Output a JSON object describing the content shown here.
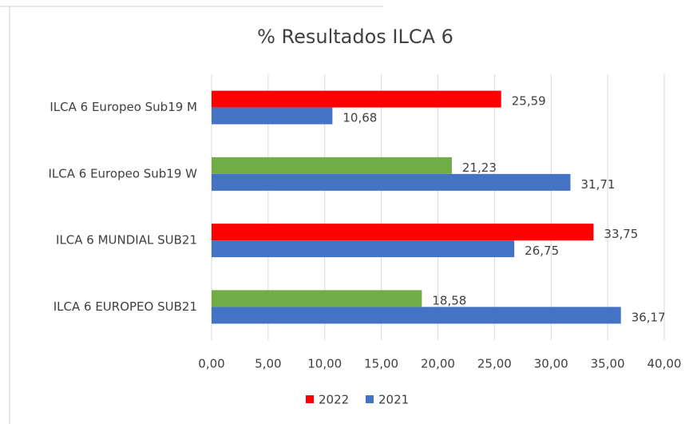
{
  "chart_data": {
    "type": "hbar",
    "title": "% Resultados ILCA 6",
    "categories": [
      "ILCA 6 Europeo Sub19 M",
      "ILCA 6 Europeo Sub19 W",
      "ILCA 6 MUNDIAL SUB21",
      "ILCA 6 EUROPEO SUB21"
    ],
    "series": [
      {
        "name": "2022",
        "color": "#ff0000",
        "colors": [
          "#ff0000",
          "#70ad47",
          "#ff0000",
          "#70ad47"
        ],
        "values": [
          25.59,
          21.23,
          33.75,
          18.58
        ],
        "value_labels": [
          "25,59",
          "21,23",
          "33,75",
          "18,58"
        ]
      },
      {
        "name": "2021",
        "color": "#4472c4",
        "values": [
          10.68,
          31.71,
          26.75,
          36.17
        ],
        "value_labels": [
          "10,68",
          "31,71",
          "26,75",
          "36,17"
        ]
      }
    ],
    "xlim": [
      0,
      40
    ],
    "xticks": [
      {
        "value": 0,
        "label": "0,00"
      },
      {
        "value": 5,
        "label": "5,00"
      },
      {
        "value": 10,
        "label": "10,00"
      },
      {
        "value": 15,
        "label": "15,00"
      },
      {
        "value": 20,
        "label": "20,00"
      },
      {
        "value": 25,
        "label": "25,00"
      },
      {
        "value": 30,
        "label": "30,00"
      },
      {
        "value": 35,
        "label": "35,00"
      },
      {
        "value": 40,
        "label": "40,00"
      }
    ],
    "grid": true,
    "legend": "bottom"
  }
}
